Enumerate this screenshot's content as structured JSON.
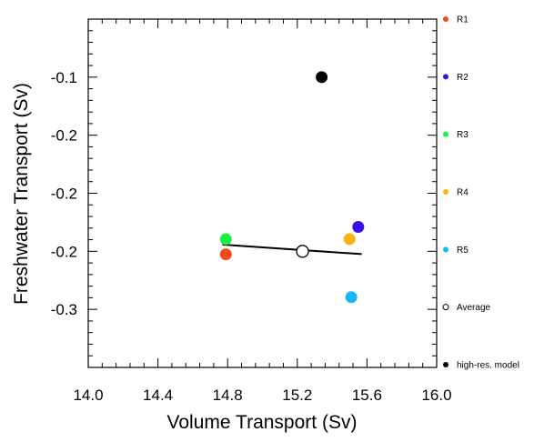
{
  "chart_data": {
    "type": "scatter",
    "xlabel": "Volume Transport (Sv)",
    "ylabel": "Freshwater Transport (Sv)",
    "xlim": [
      14.0,
      16.0
    ],
    "ylim": [
      -0.35,
      -0.05
    ],
    "x_ticks": [
      "14.0",
      "14.4",
      "14.8",
      "15.2",
      "15.6",
      "16.0"
    ],
    "x_tick_values": [
      14.0,
      14.4,
      14.8,
      15.2,
      15.6,
      16.0
    ],
    "y_ticks": [
      "-0.1",
      "-0.2",
      "-0.2",
      "-0.2",
      "-0.3"
    ],
    "y_tick_values": [
      -0.1,
      -0.15,
      -0.2,
      -0.25,
      -0.3
    ],
    "grid": false,
    "legend_position": "right",
    "series": [
      {
        "name": "R1",
        "color": "#f24b1d",
        "marker": "filled-circle",
        "x": [
          14.79
        ],
        "y": [
          -0.2526
        ]
      },
      {
        "name": "R2",
        "color": "#3b0fe6",
        "marker": "filled-circle",
        "x": [
          15.55
        ],
        "y": [
          -0.229
        ]
      },
      {
        "name": "R3",
        "color": "#19f045",
        "marker": "filled-circle",
        "x": [
          14.79
        ],
        "y": [
          -0.2395
        ]
      },
      {
        "name": "R4",
        "color": "#fbb311",
        "marker": "filled-circle",
        "x": [
          15.5
        ],
        "y": [
          -0.2395
        ]
      },
      {
        "name": "R5",
        "color": "#19b5f5",
        "marker": "filled-circle",
        "x": [
          15.51
        ],
        "y": [
          -0.2895
        ]
      },
      {
        "name": "Average",
        "color": "#000000",
        "marker": "open-circle",
        "x": [
          15.23
        ],
        "y": [
          -0.25
        ]
      },
      {
        "name": "high-res. model",
        "color": "#000000",
        "marker": "filled-circle",
        "x": [
          15.34
        ],
        "y": [
          -0.1
        ]
      }
    ],
    "regression_line": {
      "x": [
        14.77,
        15.57
      ],
      "y": [
        -0.2442,
        -0.2524
      ],
      "color": "#000000"
    }
  }
}
